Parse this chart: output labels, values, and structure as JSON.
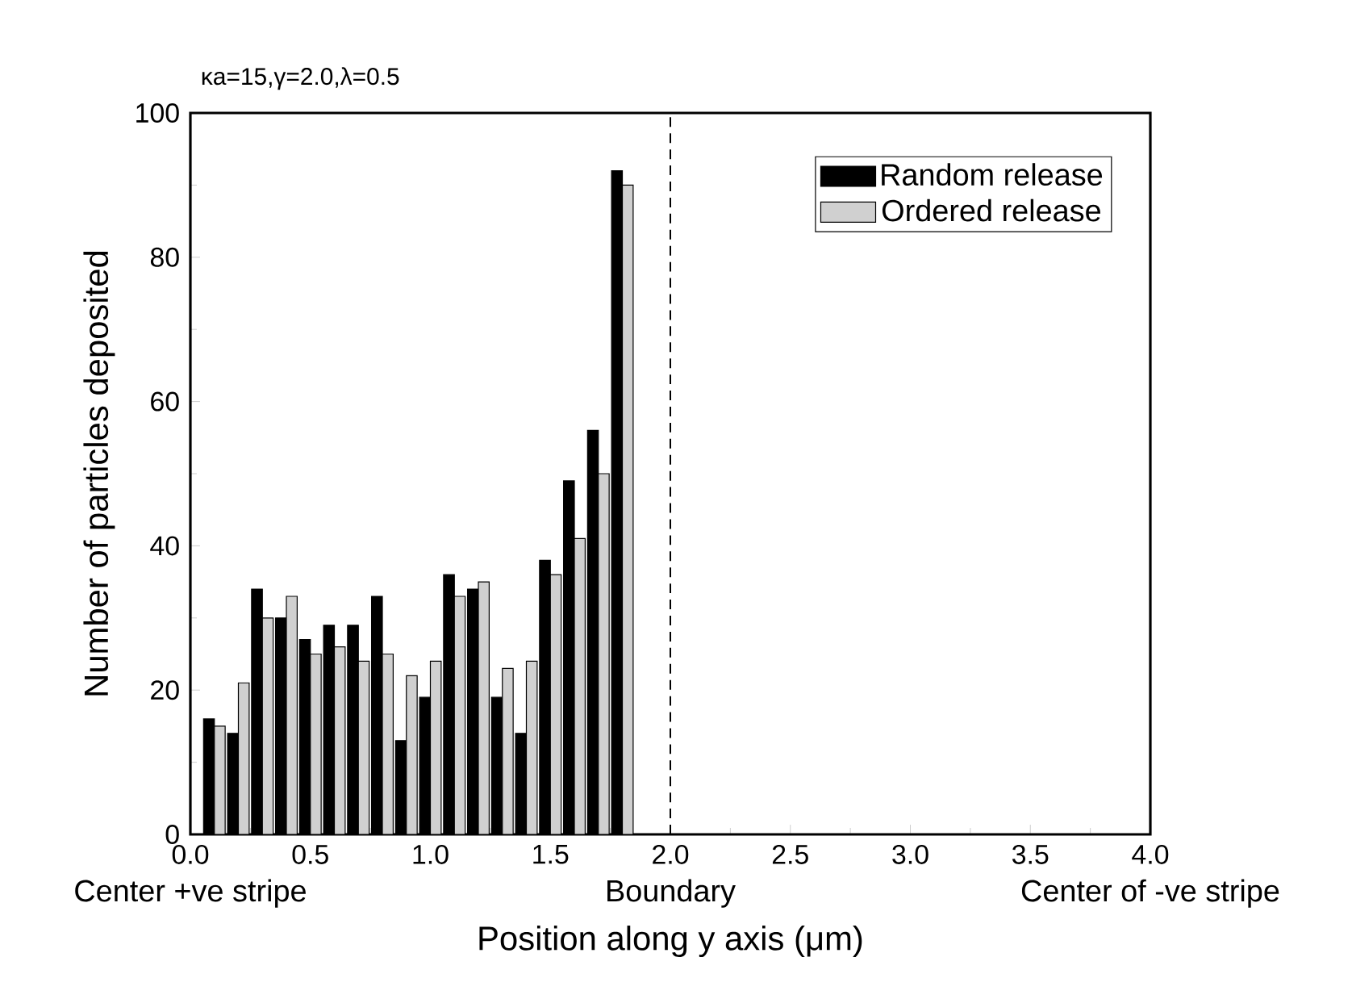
{
  "chart_data": {
    "type": "bar",
    "title": "κa=15,γ=2.0,λ=0.5",
    "xlabel": "Position along y axis (μm)",
    "ylabel": "Number of particles deposited",
    "x": [
      0.1,
      0.2,
      0.3,
      0.4,
      0.5,
      0.6,
      0.7,
      0.8,
      0.9,
      1.0,
      1.1,
      1.2,
      1.3,
      1.4,
      1.5,
      1.6,
      1.7,
      1.8
    ],
    "series": [
      {
        "name": "Random release",
        "color": "#000000",
        "values": [
          16,
          14,
          34,
          30,
          27,
          29,
          29,
          33,
          13,
          19,
          36,
          34,
          19,
          14,
          38,
          49,
          56,
          92
        ]
      },
      {
        "name": "Ordered release",
        "color": "#d0d0d0",
        "values": [
          15,
          21,
          30,
          33,
          25,
          26,
          24,
          25,
          22,
          24,
          33,
          35,
          23,
          24,
          36,
          41,
          50,
          90
        ]
      }
    ],
    "xlim": [
      0,
      4
    ],
    "ylim": [
      0,
      100
    ],
    "xticks": [
      {
        "value": 0,
        "label": "0.0"
      },
      0.5,
      {
        "value": 1,
        "label": "1.0"
      },
      1.5,
      {
        "value": 2,
        "label": "2.0"
      },
      2.5,
      {
        "value": 3,
        "label": "3.0"
      },
      3.5,
      {
        "value": 4,
        "label": "4.0"
      }
    ],
    "yticks": [
      0,
      20,
      40,
      60,
      80,
      100
    ],
    "ref_lines": [
      {
        "axis": "x",
        "value": 2,
        "line_style": "dashed",
        "color": "#000000"
      }
    ],
    "annotations": [
      "Center +ve stripe",
      "Boundary",
      "Center of -ve stripe"
    ],
    "legend": "top right",
    "grid": false
  }
}
